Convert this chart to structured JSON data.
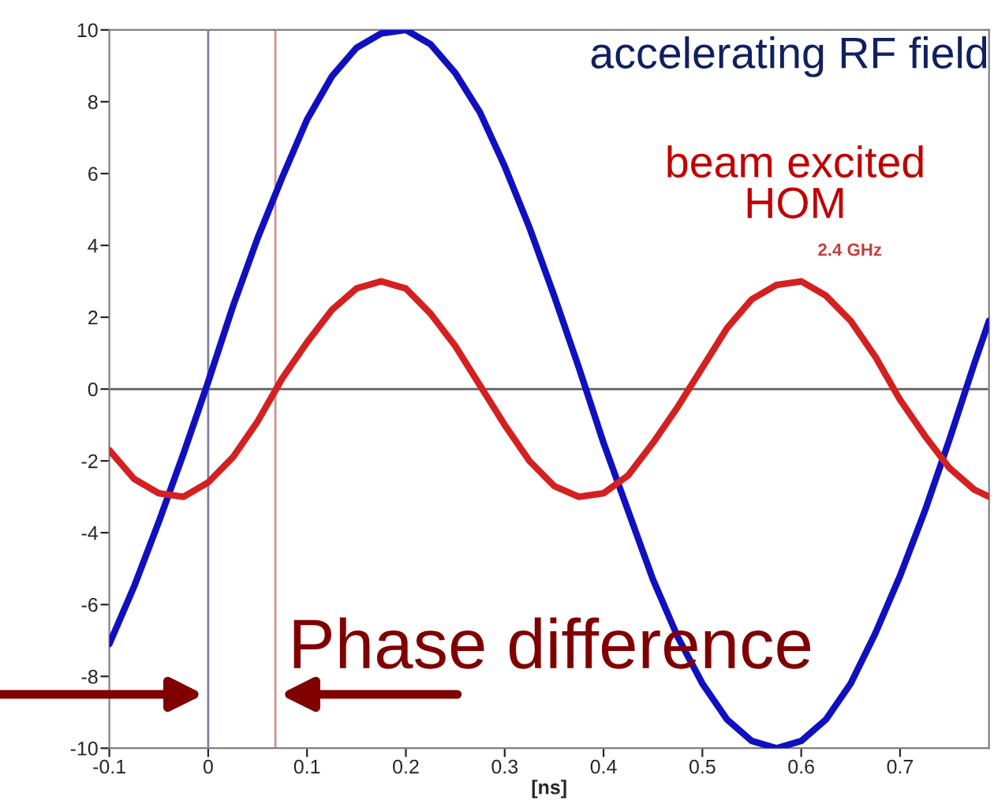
{
  "chart_data": {
    "type": "line",
    "xlabel": "[ns]",
    "x": [
      -0.1,
      -0.075,
      -0.05,
      -0.025,
      0,
      0.025,
      0.05,
      0.075,
      0.1,
      0.125,
      0.15,
      0.175,
      0.2,
      0.225,
      0.25,
      0.275,
      0.3,
      0.325,
      0.35,
      0.375,
      0.4,
      0.425,
      0.45,
      0.475,
      0.5,
      0.525,
      0.55,
      0.575,
      0.6,
      0.625,
      0.65,
      0.675,
      0.7,
      0.725,
      0.75,
      0.775,
      0.79
    ],
    "series": [
      {
        "name": "accelerating RF field",
        "color": "#1010c0",
        "values": [
          -7.1,
          -5.5,
          -3.7,
          -1.8,
          0.2,
          2.3,
          4.2,
          5.9,
          7.5,
          8.7,
          9.5,
          9.9,
          10.0,
          9.6,
          8.8,
          7.7,
          6.2,
          4.5,
          2.6,
          0.6,
          -1.5,
          -3.4,
          -5.3,
          -6.9,
          -8.2,
          -9.2,
          -9.8,
          -10.0,
          -9.8,
          -9.2,
          -8.2,
          -6.8,
          -5.2,
          -3.4,
          -1.4,
          0.7,
          1.9
        ]
      },
      {
        "name": "beam excited HOM",
        "color": "#d42020",
        "values": [
          -1.7,
          -2.5,
          -2.9,
          -3.0,
          -2.6,
          -1.9,
          -0.9,
          0.3,
          1.3,
          2.2,
          2.8,
          3.0,
          2.8,
          2.1,
          1.2,
          0.1,
          -1.0,
          -2.0,
          -2.7,
          -3.0,
          -2.9,
          -2.4,
          -1.5,
          -0.5,
          0.6,
          1.7,
          2.5,
          2.9,
          3.0,
          2.6,
          1.9,
          0.9,
          -0.3,
          -1.3,
          -2.2,
          -2.8,
          -3.0
        ]
      }
    ],
    "xlim": [
      -0.1,
      0.79
    ],
    "xticks": [
      -0.1,
      0,
      0.1,
      0.2,
      0.3,
      0.4,
      0.5,
      0.6,
      0.7
    ],
    "ylim": [
      -10,
      10
    ],
    "yticks": [
      -10,
      -8,
      -6,
      -4,
      -2,
      0,
      2,
      4,
      6,
      8,
      10
    ],
    "ref_lines": [
      {
        "axis": "y",
        "value": 0,
        "color": "#606060"
      },
      {
        "axis": "x",
        "value": 0,
        "color": "#8080a8"
      },
      {
        "axis": "x",
        "value": 0.068,
        "color": "#d09090"
      }
    ],
    "annotations": [
      {
        "text": "2.4 GHz",
        "x": 0.59,
        "y": 3
      },
      "Phase difference"
    ],
    "grid": false,
    "legend": false,
    "line_style": "solid",
    "marker": "none"
  }
}
